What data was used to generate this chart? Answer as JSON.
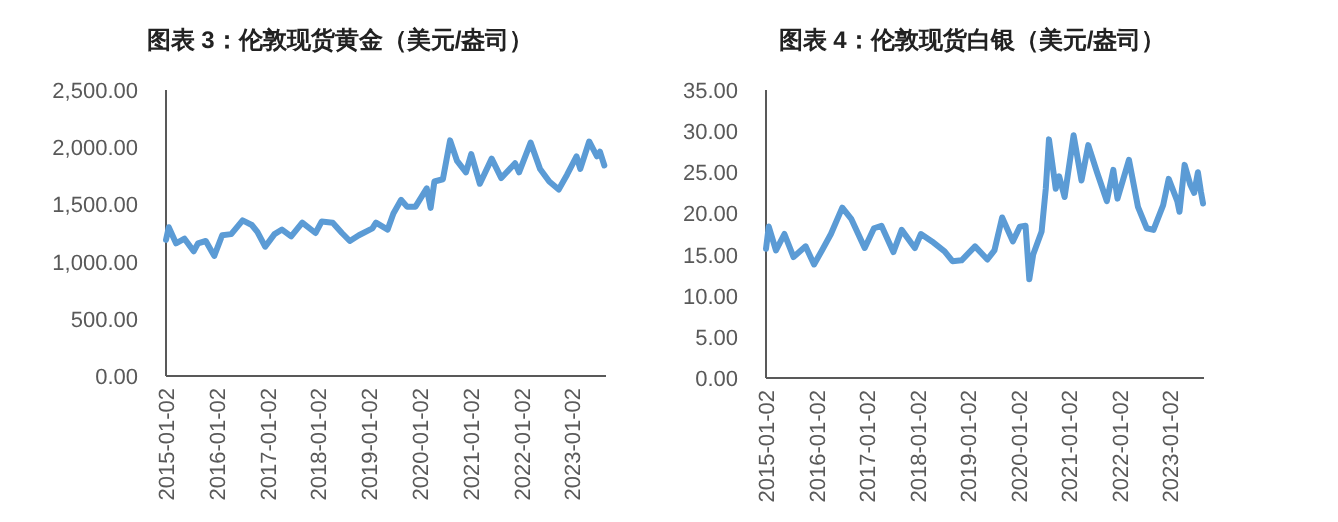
{
  "chart_data": [
    {
      "type": "line",
      "title": "图表 3：伦敦现货黄金（美元/盎司）",
      "xlim": [
        "2015-01-02",
        "2023-09-01"
      ],
      "ylim": [
        0,
        2500
      ],
      "xticks": [
        "2015-01-02",
        "2016-01-02",
        "2017-01-02",
        "2018-01-02",
        "2019-01-02",
        "2020-01-02",
        "2021-01-02",
        "2022-01-02",
        "2023-01-02"
      ],
      "yticks": [
        {
          "value": 0,
          "label": "0.00"
        },
        {
          "value": 500,
          "label": "500.00"
        },
        {
          "value": 1000,
          "label": "1,000.00"
        },
        {
          "value": 1500,
          "label": "1,500.00"
        },
        {
          "value": 2000,
          "label": "2,000.00"
        },
        {
          "value": 2500,
          "label": "2,500.00"
        }
      ],
      "grid": false,
      "marker": "none",
      "line_style": "solid",
      "series": [
        {
          "color": "#5b9bd5",
          "x": [
            "2015-01-02",
            "2015-01-22",
            "2015-03-15",
            "2015-05-15",
            "2015-07-20",
            "2015-08-20",
            "2015-10-15",
            "2015-12-15",
            "2016-02-10",
            "2016-04-15",
            "2016-07-06",
            "2016-09-10",
            "2016-10-20",
            "2016-12-15",
            "2017-02-20",
            "2017-04-15",
            "2017-06-20",
            "2017-09-08",
            "2017-12-12",
            "2018-01-25",
            "2018-04-15",
            "2018-06-20",
            "2018-08-16",
            "2018-10-20",
            "2019-01-25",
            "2019-02-20",
            "2019-05-15",
            "2019-06-25",
            "2019-08-20",
            "2019-10-01",
            "2019-12-01",
            "2020-02-20",
            "2020-03-19",
            "2020-04-15",
            "2020-06-15",
            "2020-08-06",
            "2020-09-25",
            "2020-11-28",
            "2021-01-05",
            "2021-03-08",
            "2021-06-01",
            "2021-08-09",
            "2021-11-16",
            "2021-12-15",
            "2022-03-08",
            "2022-05-15",
            "2022-07-20",
            "2022-09-26",
            "2022-11-25",
            "2023-02-01",
            "2023-02-28",
            "2023-05-03",
            "2023-06-28",
            "2023-07-20",
            "2023-08-20"
          ],
          "values": [
            1190,
            1300,
            1160,
            1200,
            1090,
            1160,
            1180,
            1050,
            1230,
            1240,
            1360,
            1320,
            1260,
            1130,
            1240,
            1280,
            1220,
            1340,
            1250,
            1350,
            1340,
            1250,
            1180,
            1230,
            1290,
            1340,
            1280,
            1420,
            1540,
            1480,
            1480,
            1640,
            1470,
            1700,
            1720,
            2060,
            1880,
            1780,
            1940,
            1680,
            1900,
            1730,
            1860,
            1780,
            2040,
            1810,
            1700,
            1630,
            1760,
            1920,
            1810,
            2050,
            1920,
            1960,
            1840
          ]
        }
      ]
    },
    {
      "type": "line",
      "title": "图表 4：伦敦现货白银（美元/盎司）",
      "xlim": [
        "2015-01-02",
        "2023-09-01"
      ],
      "ylim": [
        0,
        35
      ],
      "xticks": [
        "2015-01-02",
        "2016-01-02",
        "2017-01-02",
        "2018-01-02",
        "2019-01-02",
        "2020-01-02",
        "2021-01-02",
        "2022-01-02",
        "2023-01-02"
      ],
      "yticks": [
        {
          "value": 0,
          "label": "0.00"
        },
        {
          "value": 5,
          "label": "5.00"
        },
        {
          "value": 10,
          "label": "10.00"
        },
        {
          "value": 15,
          "label": "15.00"
        },
        {
          "value": 20,
          "label": "20.00"
        },
        {
          "value": 25,
          "label": "25.00"
        },
        {
          "value": 30,
          "label": "30.00"
        },
        {
          "value": 35,
          "label": "35.00"
        }
      ],
      "grid": false,
      "marker": "none",
      "line_style": "solid",
      "series": [
        {
          "color": "#5b9bd5",
          "x": [
            "2015-01-02",
            "2015-01-22",
            "2015-03-15",
            "2015-05-15",
            "2015-07-20",
            "2015-10-15",
            "2015-12-15",
            "2016-02-10",
            "2016-04-15",
            "2016-07-06",
            "2016-09-10",
            "2016-12-15",
            "2017-02-20",
            "2017-04-15",
            "2017-07-10",
            "2017-09-08",
            "2017-12-12",
            "2018-01-25",
            "2018-04-15",
            "2018-07-15",
            "2018-09-10",
            "2018-11-15",
            "2019-02-20",
            "2019-05-20",
            "2019-07-10",
            "2019-09-04",
            "2019-11-20",
            "2020-01-10",
            "2020-02-20",
            "2020-03-18",
            "2020-04-15",
            "2020-06-15",
            "2020-07-15",
            "2020-08-07",
            "2020-09-25",
            "2020-10-20",
            "2020-11-28",
            "2021-02-01",
            "2021-03-30",
            "2021-05-18",
            "2021-07-20",
            "2021-09-29",
            "2021-11-15",
            "2021-12-15",
            "2022-03-08",
            "2022-05-12",
            "2022-07-14",
            "2022-09-01",
            "2022-11-10",
            "2022-12-20",
            "2023-02-20",
            "2023-03-08",
            "2023-04-14",
            "2023-05-25",
            "2023-06-22",
            "2023-07-19",
            "2023-08-10",
            "2023-08-25"
          ],
          "values": [
            15.7,
            18.4,
            15.5,
            17.5,
            14.7,
            16,
            13.8,
            15.5,
            17.5,
            20.7,
            19.3,
            15.8,
            18.2,
            18.5,
            15.3,
            18,
            15.8,
            17.5,
            16.6,
            15.4,
            14.2,
            14.3,
            16,
            14.4,
            15.5,
            19.5,
            16.6,
            18.4,
            18.5,
            12,
            15,
            17.8,
            23,
            29,
            23,
            24.5,
            22,
            29.5,
            24,
            28.3,
            25,
            21.5,
            25.3,
            21.8,
            26.5,
            20.8,
            18.2,
            18,
            21,
            24.2,
            21.5,
            20.2,
            25.9,
            23.5,
            22.5,
            25,
            22.6,
            21.2
          ]
        }
      ]
    }
  ]
}
